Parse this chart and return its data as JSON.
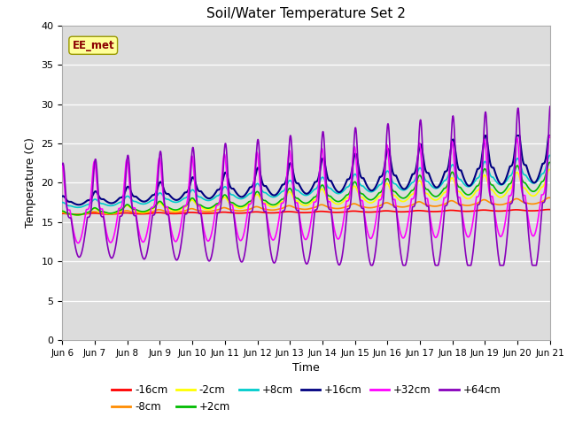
{
  "title": "Soil/Water Temperature Set 2",
  "xlabel": "Time",
  "ylabel": "Temperature (C)",
  "ylim": [
    0,
    40
  ],
  "yticks": [
    0,
    5,
    10,
    15,
    20,
    25,
    30,
    35,
    40
  ],
  "xtick_labels": [
    "Jun 6",
    "Jun 7",
    "Jun 8",
    "Jun 9",
    "Jun 10",
    "Jun 11",
    "Jun 12",
    "Jun 13",
    "Jun 14",
    "Jun 15",
    "Jun 16",
    "Jun 17",
    "Jun 18",
    "Jun 19",
    "Jun 20",
    "Jun 21"
  ],
  "background_color": "#dcdcdc",
  "watermark_text": "EE_met",
  "watermark_fg": "#8b0000",
  "watermark_bg": "#ffff99",
  "series_colors": {
    "-16cm": "#ff0000",
    "-8cm": "#ff8c00",
    "-2cm": "#ffff00",
    "+2cm": "#00bb00",
    "+8cm": "#00cccc",
    "+16cm": "#000080",
    "+32cm": "#ff00ff",
    "+64cm": "#8800bb"
  },
  "legend_order": [
    "-16cm",
    "-8cm",
    "-2cm",
    "+2cm",
    "+8cm",
    "+16cm",
    "+32cm",
    "+64cm"
  ]
}
